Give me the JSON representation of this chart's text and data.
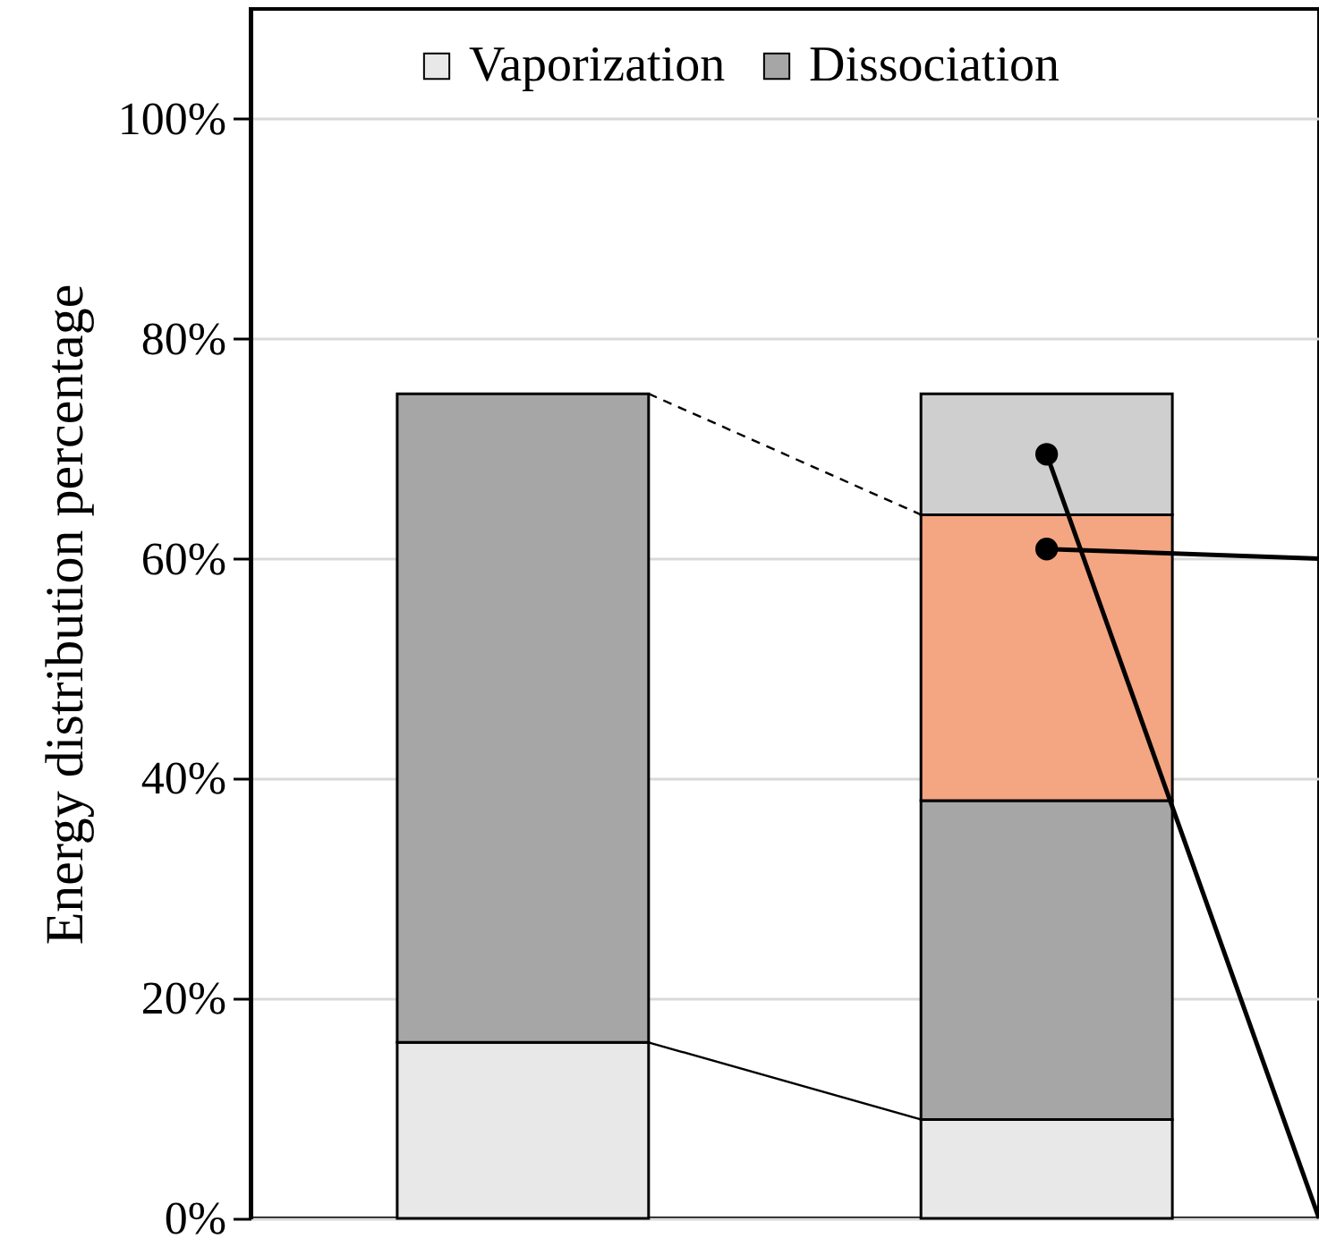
{
  "chart_data": {
    "type": "bar",
    "stacked": true,
    "ylabel": "Energy distribution percentage",
    "categories": [
      null,
      null
    ],
    "series": [
      {
        "name": "Vaporization",
        "color": "#e8e8e8",
        "values": [
          16,
          9
        ]
      },
      {
        "name": "Dissociation",
        "color": "#a6a6a6",
        "values": [
          59,
          29
        ]
      },
      {
        "color": "#f4a582",
        "values": [
          null,
          26
        ]
      },
      {
        "color": "#cfcfcf",
        "values": [
          null,
          11
        ]
      }
    ],
    "ylim": [
      0,
      110
    ],
    "yticks": [
      {
        "value": 0,
        "label": "0%"
      },
      {
        "value": 20,
        "label": "20%"
      },
      {
        "value": 40,
        "label": "40%"
      },
      {
        "value": 60,
        "label": "60%"
      },
      {
        "value": 80,
        "label": "80%"
      },
      {
        "value": 100,
        "label": "100%"
      }
    ],
    "grid": "y",
    "legend": "top"
  }
}
